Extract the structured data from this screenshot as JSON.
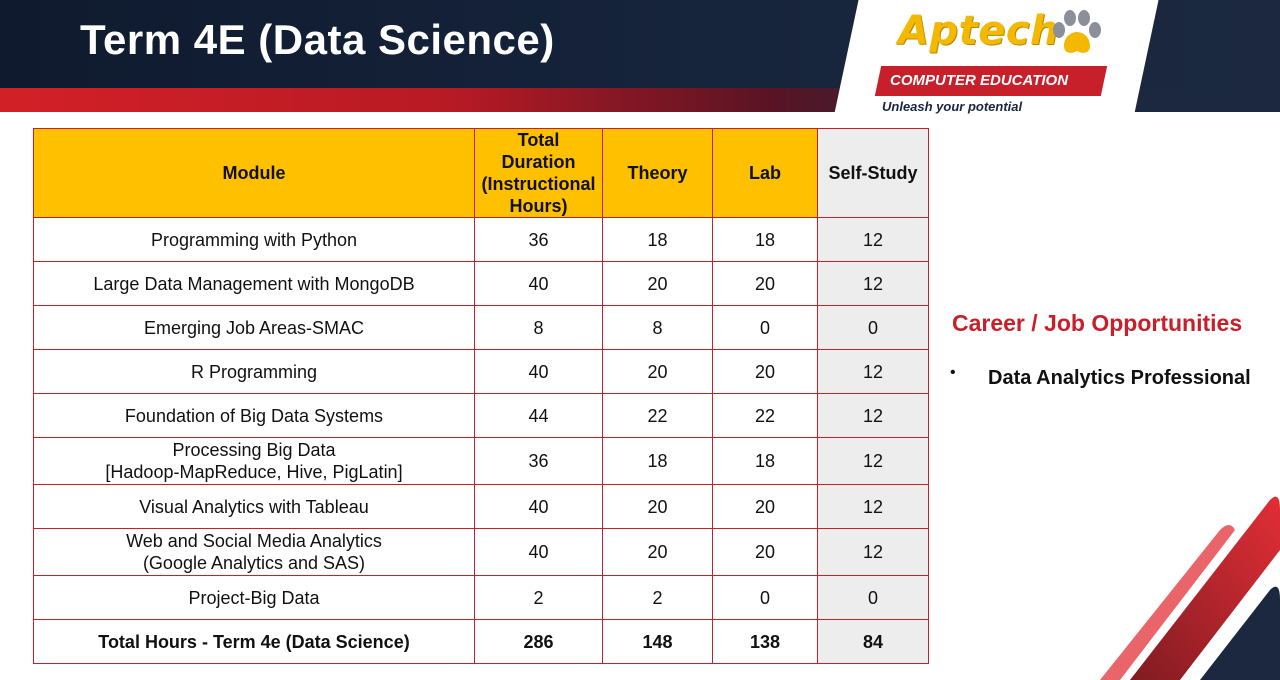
{
  "header": {
    "title": "Term 4E (Data Science)"
  },
  "logo": {
    "brand": "Aptech",
    "bar_text": "COMPUTER EDUCATION",
    "tagline": "Unleash your potential",
    "colors": {
      "yellow": "#f5b800",
      "red": "#c8202b",
      "navy": "#16243c"
    },
    "icon": "paw-icon"
  },
  "table": {
    "headers": {
      "module": "Module",
      "total_duration": "Total Duration (Instructional Hours)",
      "theory": "Theory",
      "lab": "Lab",
      "self_study": "Self-Study"
    },
    "rows": [
      {
        "module": "Programming with Python",
        "total": "36",
        "theory": "18",
        "lab": "18",
        "self_study": "12"
      },
      {
        "module": "Large Data Management with MongoDB",
        "total": "40",
        "theory": "20",
        "lab": "20",
        "self_study": "12"
      },
      {
        "module": "Emerging Job Areas-SMAC",
        "total": "8",
        "theory": "8",
        "lab": "0",
        "self_study": "0"
      },
      {
        "module": "R Programming",
        "total": "40",
        "theory": "20",
        "lab": "20",
        "self_study": "12"
      },
      {
        "module": "Foundation of Big Data Systems",
        "total": "44",
        "theory": "22",
        "lab": "22",
        "self_study": "12"
      },
      {
        "module": "Processing Big Data",
        "module_sub": "[Hadoop-MapReduce, Hive, PigLatin]",
        "total": "36",
        "theory": "18",
        "lab": "18",
        "self_study": "12"
      },
      {
        "module": "Visual Analytics with Tableau",
        "total": "40",
        "theory": "20",
        "lab": "20",
        "self_study": "12"
      },
      {
        "module": "Web and Social Media Analytics",
        "module_sub": "(Google Analytics and SAS)",
        "total": "40",
        "theory": "20",
        "lab": "20",
        "self_study": "12"
      },
      {
        "module": "Project-Big Data",
        "total": "2",
        "theory": "2",
        "lab": "0",
        "self_study": "0"
      }
    ],
    "total_row": {
      "module": "Total Hours - Term 4e (Data Science)",
      "total": "286",
      "theory": "148",
      "lab": "138",
      "self_study": "84"
    },
    "colors": {
      "header_bg": "#ffc000",
      "self_study_bg": "#ededed",
      "border": "#c8202b"
    }
  },
  "career": {
    "title": "Career / Job Opportunities",
    "bullet": "•",
    "items": [
      "Data Analytics Professional"
    ]
  }
}
